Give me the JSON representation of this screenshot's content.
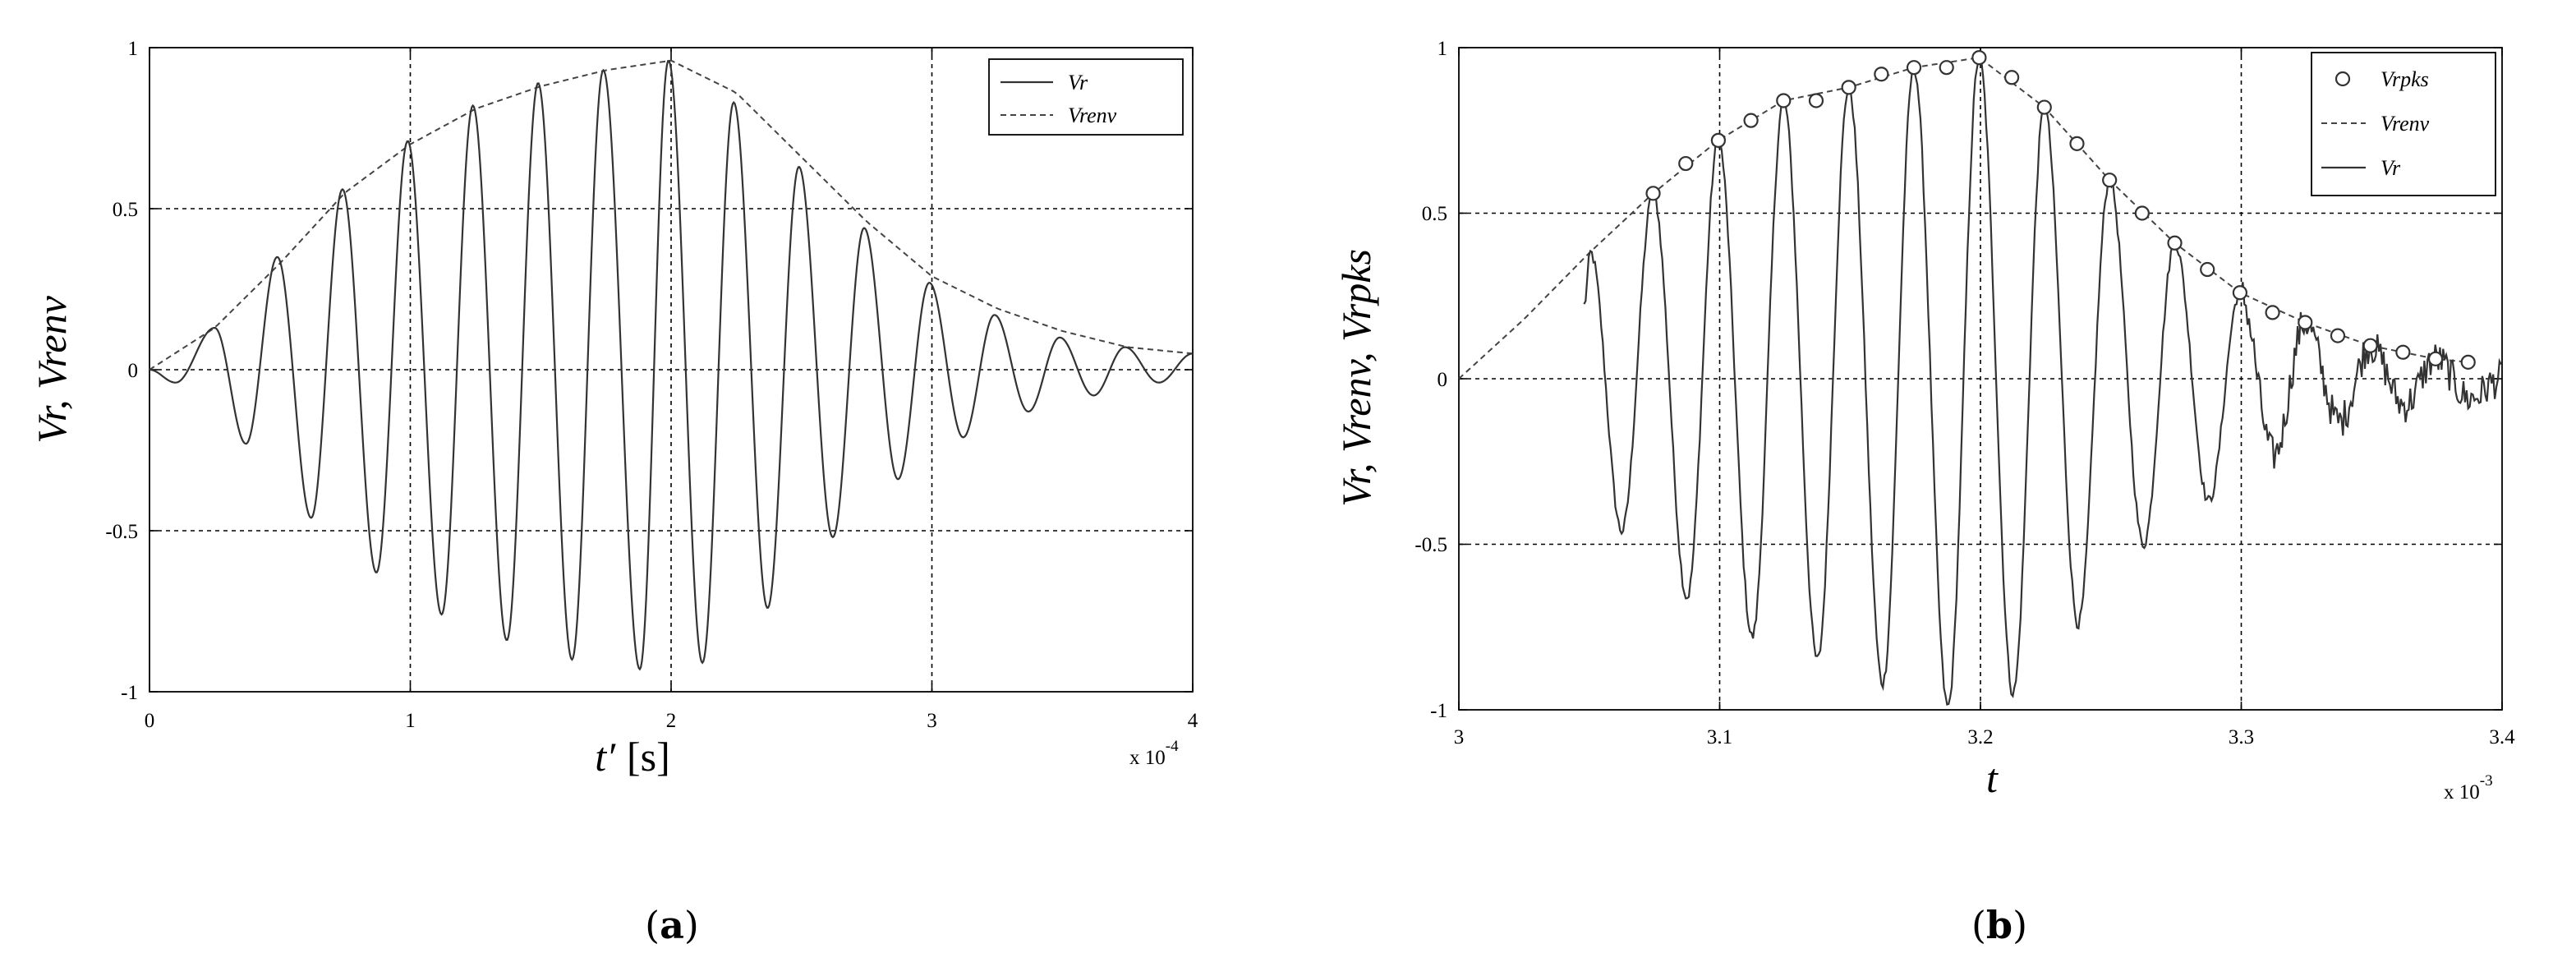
{
  "figure": {
    "captions": [
      {
        "open": "(",
        "letter": "a",
        "close": ")"
      },
      {
        "open": "(",
        "letter": "b",
        "close": ")"
      }
    ]
  },
  "chart_data": [
    {
      "type": "line",
      "panel": "a",
      "xlabel": "t′",
      "xunit": "[s]",
      "ylabel": "Vr, Vrenv",
      "x_exponent_label": "x 10",
      "x_exponent": "-4",
      "xlim": [
        0,
        4
      ],
      "ylim": [
        -1,
        1
      ],
      "xticks": [
        0,
        1,
        2,
        3,
        4
      ],
      "xtick_labels": [
        "0",
        "1",
        "2",
        "3",
        "4"
      ],
      "yticks": [
        -1,
        -0.5,
        0,
        0.5,
        1
      ],
      "ytick_labels": [
        "-1",
        "-0.5",
        "0",
        "0.5",
        "1"
      ],
      "grid": true,
      "legend_position": "top-right",
      "signal": {
        "period": 0.25,
        "peak_times": [
          0.25,
          0.75,
          1.25,
          1.75,
          2.25,
          2.75,
          3.25,
          3.75
        ],
        "trough_times": [
          0.125,
          0.375,
          0.625,
          0.875,
          1.125,
          1.375,
          1.625,
          1.875,
          2.125,
          2.375,
          2.625,
          2.875,
          3.125,
          3.375,
          3.625,
          3.875
        ]
      },
      "series": [
        {
          "name": "Vr",
          "style": "solid",
          "x": [
            0,
            0.1,
            0.25,
            0.37,
            0.49,
            0.62,
            0.74,
            0.87,
            0.99,
            1.12,
            1.24,
            1.37,
            1.49,
            1.62,
            1.74,
            1.88,
            1.99,
            2.12,
            2.24,
            2.37,
            2.49,
            2.62,
            2.74,
            2.87,
            2.99,
            3.12,
            3.24,
            3.37,
            3.49,
            3.62,
            3.74,
            3.87,
            4.0
          ],
          "y": [
            0,
            -0.04,
            0.13,
            -0.23,
            0.35,
            -0.46,
            0.56,
            -0.63,
            0.71,
            -0.76,
            0.82,
            -0.84,
            0.89,
            -0.9,
            0.93,
            -0.93,
            0.96,
            -0.91,
            0.83,
            -0.74,
            0.63,
            -0.52,
            0.44,
            -0.34,
            0.27,
            -0.21,
            0.17,
            -0.13,
            0.1,
            -0.08,
            0.07,
            -0.04,
            0.05
          ]
        },
        {
          "name": "Vrenv",
          "style": "dashed",
          "x": [
            0,
            0.25,
            0.5,
            0.75,
            1.0,
            1.25,
            1.5,
            1.75,
            2.0,
            2.25,
            2.5,
            2.75,
            3.0,
            3.25,
            3.5,
            3.75,
            4.0
          ],
          "y": [
            0,
            0.13,
            0.33,
            0.55,
            0.7,
            0.81,
            0.88,
            0.93,
            0.96,
            0.86,
            0.66,
            0.46,
            0.29,
            0.19,
            0.12,
            0.07,
            0.05
          ]
        }
      ]
    },
    {
      "type": "line",
      "panel": "b",
      "xlabel": "t",
      "ylabel": "Vr, Vrenv, Vrpks",
      "x_exponent_label": "x 10",
      "x_exponent": "-3",
      "xlim": [
        3,
        3.4
      ],
      "ylim": [
        -1,
        1
      ],
      "xticks": [
        3,
        3.1,
        3.2,
        3.3,
        3.4
      ],
      "xtick_labels": [
        "3",
        "3.1",
        "3.2",
        "3.3",
        "3.4"
      ],
      "yticks": [
        -1,
        -0.5,
        0,
        0.5,
        1
      ],
      "ytick_labels": [
        "-1",
        "-0.5",
        "0",
        "0.5",
        "1"
      ],
      "grid": true,
      "legend_position": "top-right",
      "signal": {
        "start": 3.05,
        "period": 0.025,
        "peak_times": [
          3.0745,
          3.0995,
          3.1245,
          3.1495,
          3.1745,
          3.1995,
          3.2245,
          3.2495,
          3.2745,
          3.2995,
          3.3245,
          3.3495,
          3.3745
        ],
        "trough_times": [
          3.0625,
          3.0875,
          3.1125,
          3.1375,
          3.1625,
          3.1875,
          3.2125,
          3.2375,
          3.2625,
          3.2875,
          3.3125,
          3.3375,
          3.3625,
          3.3875
        ],
        "trough_values": [
          -0.46,
          -0.66,
          -0.78,
          -0.85,
          -0.92,
          -0.99,
          -0.95,
          -0.74,
          -0.5,
          -0.37,
          -0.23,
          -0.13,
          -0.08,
          -0.06
        ]
      },
      "series": [
        {
          "name": "Vrpks",
          "style": "markers",
          "x": [
            3.0745,
            3.087,
            3.0995,
            3.112,
            3.1245,
            3.137,
            3.1495,
            3.162,
            3.1745,
            3.187,
            3.1995,
            3.212,
            3.2245,
            3.237,
            3.2495,
            3.262,
            3.2745,
            3.287,
            3.2995,
            3.312,
            3.3245,
            3.337,
            3.3495,
            3.362,
            3.3745,
            3.387
          ],
          "y": [
            0.56,
            0.65,
            0.72,
            0.78,
            0.84,
            0.84,
            0.88,
            0.92,
            0.94,
            0.94,
            0.97,
            0.91,
            0.82,
            0.71,
            0.6,
            0.5,
            0.41,
            0.33,
            0.26,
            0.2,
            0.17,
            0.13,
            0.1,
            0.08,
            0.06,
            0.05
          ]
        },
        {
          "name": "Vrenv",
          "style": "dashed",
          "x": [
            3.0,
            3.025,
            3.05,
            3.0745,
            3.0995,
            3.1245,
            3.1495,
            3.1745,
            3.1995,
            3.2245,
            3.2495,
            3.2745,
            3.2995,
            3.3245,
            3.3495,
            3.3745,
            3.387
          ],
          "y": [
            0,
            0.18,
            0.38,
            0.56,
            0.72,
            0.84,
            0.88,
            0.94,
            0.97,
            0.82,
            0.6,
            0.41,
            0.26,
            0.17,
            0.1,
            0.06,
            0.05
          ]
        },
        {
          "name": "Vr",
          "style": "solid",
          "x_start": 3.048,
          "x_end": 3.4,
          "peak_y": [
            0.38,
            0.56,
            0.72,
            0.84,
            0.88,
            0.94,
            0.97,
            0.82,
            0.6,
            0.41,
            0.26,
            0.17,
            0.1,
            0.06,
            0.05
          ]
        }
      ]
    }
  ]
}
